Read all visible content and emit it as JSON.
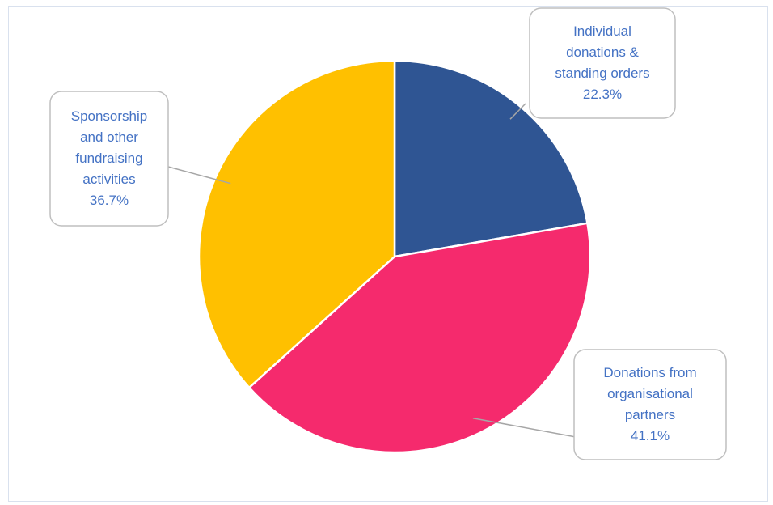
{
  "chart_data": {
    "type": "pie",
    "title": "",
    "slices": [
      {
        "label": "Individual donations & standing orders",
        "label_lines": [
          "Individual",
          "donations &",
          "standing orders"
        ],
        "value_label": "22.3%",
        "value": 22.3,
        "color": "#2f5593"
      },
      {
        "label": "Donations from organisational partners",
        "label_lines": [
          "Donations from",
          "organisational",
          "partners"
        ],
        "value_label": "41.1%",
        "value": 41.1,
        "color": "#f52a6d"
      },
      {
        "label": "Sponsorship and other fundraising activities",
        "label_lines": [
          "Sponsorship",
          "and other",
          "fundraising",
          "activities"
        ],
        "value_label": "36.7%",
        "value": 36.7,
        "color": "#ffc000"
      }
    ],
    "label_color": "#4472c4",
    "legend": "none",
    "data_labels": "callouts"
  }
}
